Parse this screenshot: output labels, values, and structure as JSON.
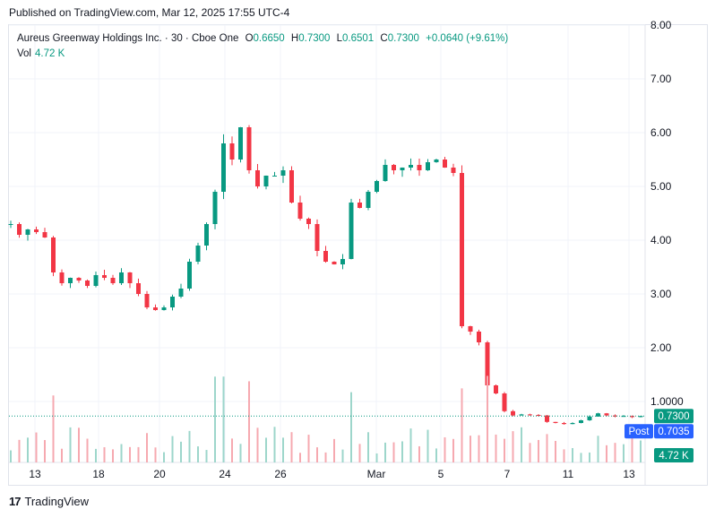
{
  "header": {
    "published": "Published on TradingView.com, Mar 12, 2025 17:55 UTC-4"
  },
  "legend": {
    "symbol": "Aureus Greenway Holdings Inc. · 30 · Cboe One",
    "o_label": "O",
    "o": "0.6650",
    "h_label": "H",
    "h": "0.7300",
    "l_label": "L",
    "l": "0.6501",
    "c_label": "C",
    "c": "0.7300",
    "change": "+0.0640 (+9.61%)",
    "vol_label": "Vol",
    "vol": "4.72 K"
  },
  "footer": {
    "brand": "TradingView",
    "mark": "17"
  },
  "colors": {
    "up": "#089981",
    "down": "#f23645",
    "post": "#2962ff",
    "grid": "#f0f3fa"
  },
  "chart_data": {
    "type": "candlestick",
    "y_ticks": [
      "8.00",
      "7.00",
      "6.00",
      "5.00",
      "4.00",
      "3.00",
      "2.00",
      "1.0000"
    ],
    "ylim": [
      0,
      8.3
    ],
    "x_ticks": [
      "13",
      "18",
      "20",
      "24",
      "26",
      "Mar",
      "5",
      "7",
      "11",
      "13"
    ],
    "last_price_label": "0.7300",
    "post_label": "Post",
    "post_price": "0.7035",
    "volume_label": "4.72 K",
    "price_path": [
      [
        0,
        4.3
      ],
      [
        1,
        4.1
      ],
      [
        2,
        4.2
      ],
      [
        3,
        4.15
      ],
      [
        4,
        4.05
      ],
      [
        5,
        3.4
      ],
      [
        6,
        3.2
      ],
      [
        7,
        3.3
      ],
      [
        8,
        3.25
      ],
      [
        9,
        3.15
      ],
      [
        10,
        3.35
      ],
      [
        11,
        3.3
      ],
      [
        12,
        3.2
      ],
      [
        13,
        3.4
      ],
      [
        14,
        3.2
      ],
      [
        15,
        3.0
      ],
      [
        16,
        2.75
      ],
      [
        17,
        2.7
      ],
      [
        18,
        2.75
      ],
      [
        19,
        2.95
      ],
      [
        20,
        3.1
      ],
      [
        21,
        3.6
      ],
      [
        22,
        3.9
      ],
      [
        23,
        4.3
      ],
      [
        24,
        4.9
      ],
      [
        25,
        5.8
      ],
      [
        26,
        5.5
      ],
      [
        27,
        6.1
      ],
      [
        28,
        5.3
      ],
      [
        29,
        5.0
      ],
      [
        30,
        5.2
      ],
      [
        31,
        5.2
      ],
      [
        32,
        5.3
      ],
      [
        33,
        4.7
      ],
      [
        34,
        4.4
      ],
      [
        35,
        4.3
      ],
      [
        36,
        3.8
      ],
      [
        37,
        3.6
      ],
      [
        38,
        3.55
      ],
      [
        39,
        3.65
      ],
      [
        40,
        4.7
      ],
      [
        41,
        4.6
      ],
      [
        42,
        4.9
      ],
      [
        43,
        5.1
      ],
      [
        44,
        5.4
      ],
      [
        45,
        5.3
      ],
      [
        46,
        5.35
      ],
      [
        47,
        5.4
      ],
      [
        48,
        5.3
      ],
      [
        49,
        5.45
      ],
      [
        50,
        5.5
      ],
      [
        51,
        5.35
      ],
      [
        52,
        5.25
      ],
      [
        53,
        2.4
      ],
      [
        54,
        2.3
      ],
      [
        55,
        2.1
      ],
      [
        56,
        1.3
      ],
      [
        57,
        1.15
      ],
      [
        58,
        0.82
      ],
      [
        59,
        0.74
      ],
      [
        60,
        0.76
      ],
      [
        61,
        0.75
      ],
      [
        62,
        0.74
      ],
      [
        63,
        0.62
      ],
      [
        64,
        0.6
      ],
      [
        65,
        0.58
      ],
      [
        66,
        0.6
      ],
      [
        67,
        0.65
      ],
      [
        68,
        0.72
      ],
      [
        69,
        0.78
      ],
      [
        70,
        0.74
      ],
      [
        71,
        0.72
      ],
      [
        72,
        0.73
      ],
      [
        73,
        0.71
      ],
      [
        74,
        0.73
      ]
    ]
  }
}
